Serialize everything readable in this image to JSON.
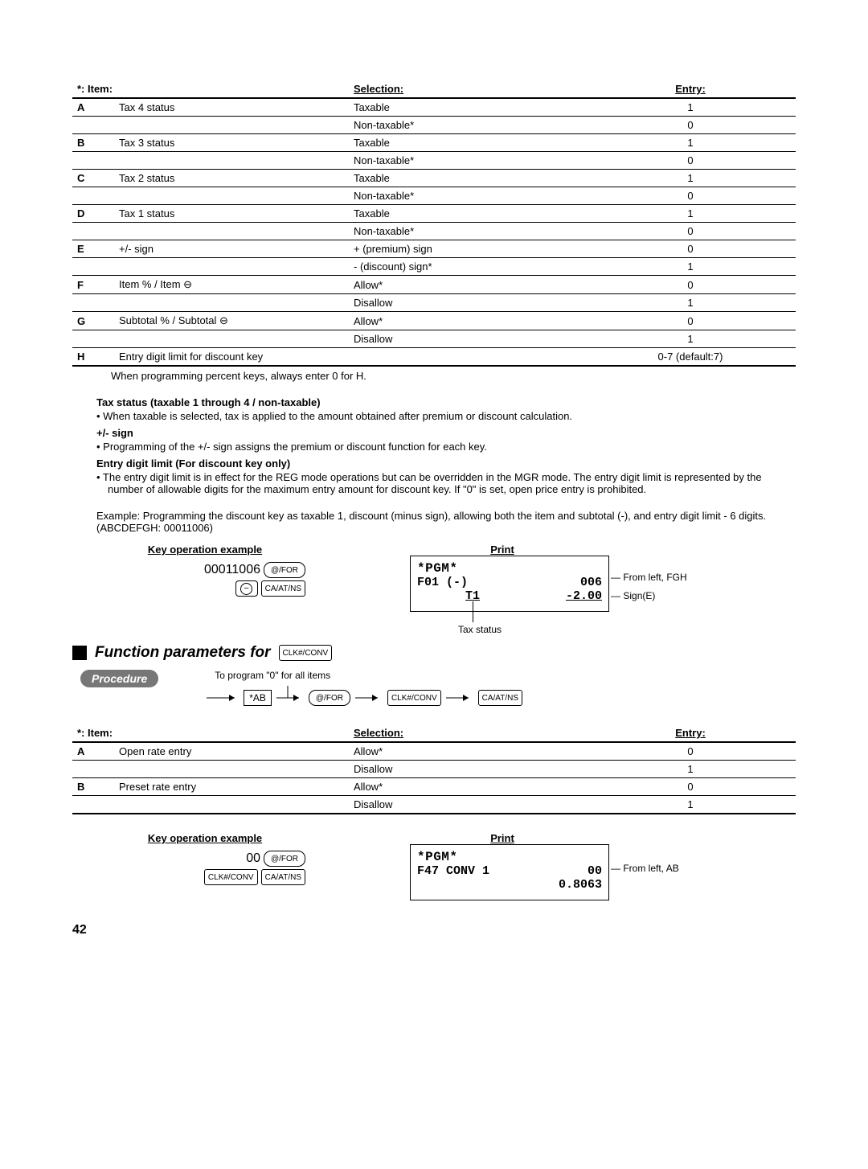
{
  "table1": {
    "headers": {
      "item": "*: Item:",
      "sel": "Selection:",
      "ent": "Entry:"
    },
    "rows": [
      {
        "code": "A",
        "desc": "Tax 4 status",
        "sel": "Taxable",
        "ent": "1"
      },
      {
        "code": "",
        "desc": "",
        "sel": "Non-taxable*",
        "ent": "0"
      },
      {
        "code": "B",
        "desc": "Tax 3 status",
        "sel": "Taxable",
        "ent": "1"
      },
      {
        "code": "",
        "desc": "",
        "sel": "Non-taxable*",
        "ent": "0"
      },
      {
        "code": "C",
        "desc": "Tax 2 status",
        "sel": "Taxable",
        "ent": "1"
      },
      {
        "code": "",
        "desc": "",
        "sel": "Non-taxable*",
        "ent": "0"
      },
      {
        "code": "D",
        "desc": "Tax 1 status",
        "sel": "Taxable",
        "ent": "1"
      },
      {
        "code": "",
        "desc": "",
        "sel": "Non-taxable*",
        "ent": "0"
      },
      {
        "code": "E",
        "desc": "+/- sign",
        "sel": "+ (premium) sign",
        "ent": "0"
      },
      {
        "code": "",
        "desc": "",
        "sel": "- (discount) sign*",
        "ent": "1"
      },
      {
        "code": "F",
        "desc": "Item % / Item ⊖",
        "sel": "Allow*",
        "ent": "0"
      },
      {
        "code": "",
        "desc": "",
        "sel": "Disallow",
        "ent": "1"
      },
      {
        "code": "G",
        "desc": "Subtotal % / Subtotal ⊖",
        "sel": "Allow*",
        "ent": "0"
      },
      {
        "code": "",
        "desc": "",
        "sel": "Disallow",
        "ent": "1"
      },
      {
        "code": "H",
        "desc": "Entry digit limit for discount key",
        "sel": "",
        "ent": "0-7 (default:7)"
      }
    ],
    "note": "When programming percent keys, always enter 0 for H."
  },
  "notes": {
    "h1": "Tax status (taxable 1 through 4 / non-taxable)",
    "p1": "• When taxable is selected, tax is applied to the amount obtained after premium or discount calculation.",
    "h2": "+/- sign",
    "p2": "• Programming of the +/- sign assigns the premium or discount function for each key.",
    "h3": "Entry digit limit (For discount key only)",
    "p3": "• The entry digit limit is in effect for the REG mode operations but can be overridden in the MGR mode.  The entry digit limit is represented by the number of allowable digits for the maximum entry amount for discount key.  If \"0\" is set, open price entry is prohibited."
  },
  "example": "Example:  Programming the discount key as taxable 1, discount (minus sign), allowing both the item and subtotal (-), and entry digit limit - 6 digits.  (ABCDEFGH: 00011006)",
  "kex1": {
    "title_left": "Key operation example",
    "title_right": "Print",
    "seq": "00011006",
    "key1": "@/FOR",
    "key2": "⊖",
    "key3": "CA/AT/NS",
    "receipt": {
      "pgm": "*PGM*",
      "l1a": "F01 (-)",
      "l1b": "006",
      "l2a": "T1",
      "l2b": "-2.00"
    },
    "ann1": "From left, FGH",
    "ann2": "Sign(E)",
    "ann3": "Tax status"
  },
  "section2": {
    "title": "Function parameters for",
    "key": "CLK#/CONV",
    "procedure": "Procedure",
    "flow_note": "To program \"0\" for all items",
    "ab": "*AB",
    "k1": "@/FOR",
    "k2": "CLK#/CONV",
    "k3": "CA/AT/NS"
  },
  "table2": {
    "headers": {
      "item": "*: Item:",
      "sel": "Selection:",
      "ent": "Entry:"
    },
    "rows": [
      {
        "code": "A",
        "desc": "Open rate entry",
        "sel": "Allow*",
        "ent": "0"
      },
      {
        "code": "",
        "desc": "",
        "sel": "Disallow",
        "ent": "1"
      },
      {
        "code": "B",
        "desc": "Preset rate entry",
        "sel": "Allow*",
        "ent": "0"
      },
      {
        "code": "",
        "desc": "",
        "sel": "Disallow",
        "ent": "1"
      }
    ]
  },
  "kex2": {
    "title_left": "Key operation example",
    "title_right": "Print",
    "seq": "00",
    "key1": "@/FOR",
    "key2": "CLK#/CONV",
    "key3": "CA/AT/NS",
    "receipt": {
      "pgm": "*PGM*",
      "l1a": "F47 CONV 1",
      "l1b": "00",
      "l2b": "0.8063"
    },
    "ann1": "From left, AB"
  },
  "page": "42"
}
